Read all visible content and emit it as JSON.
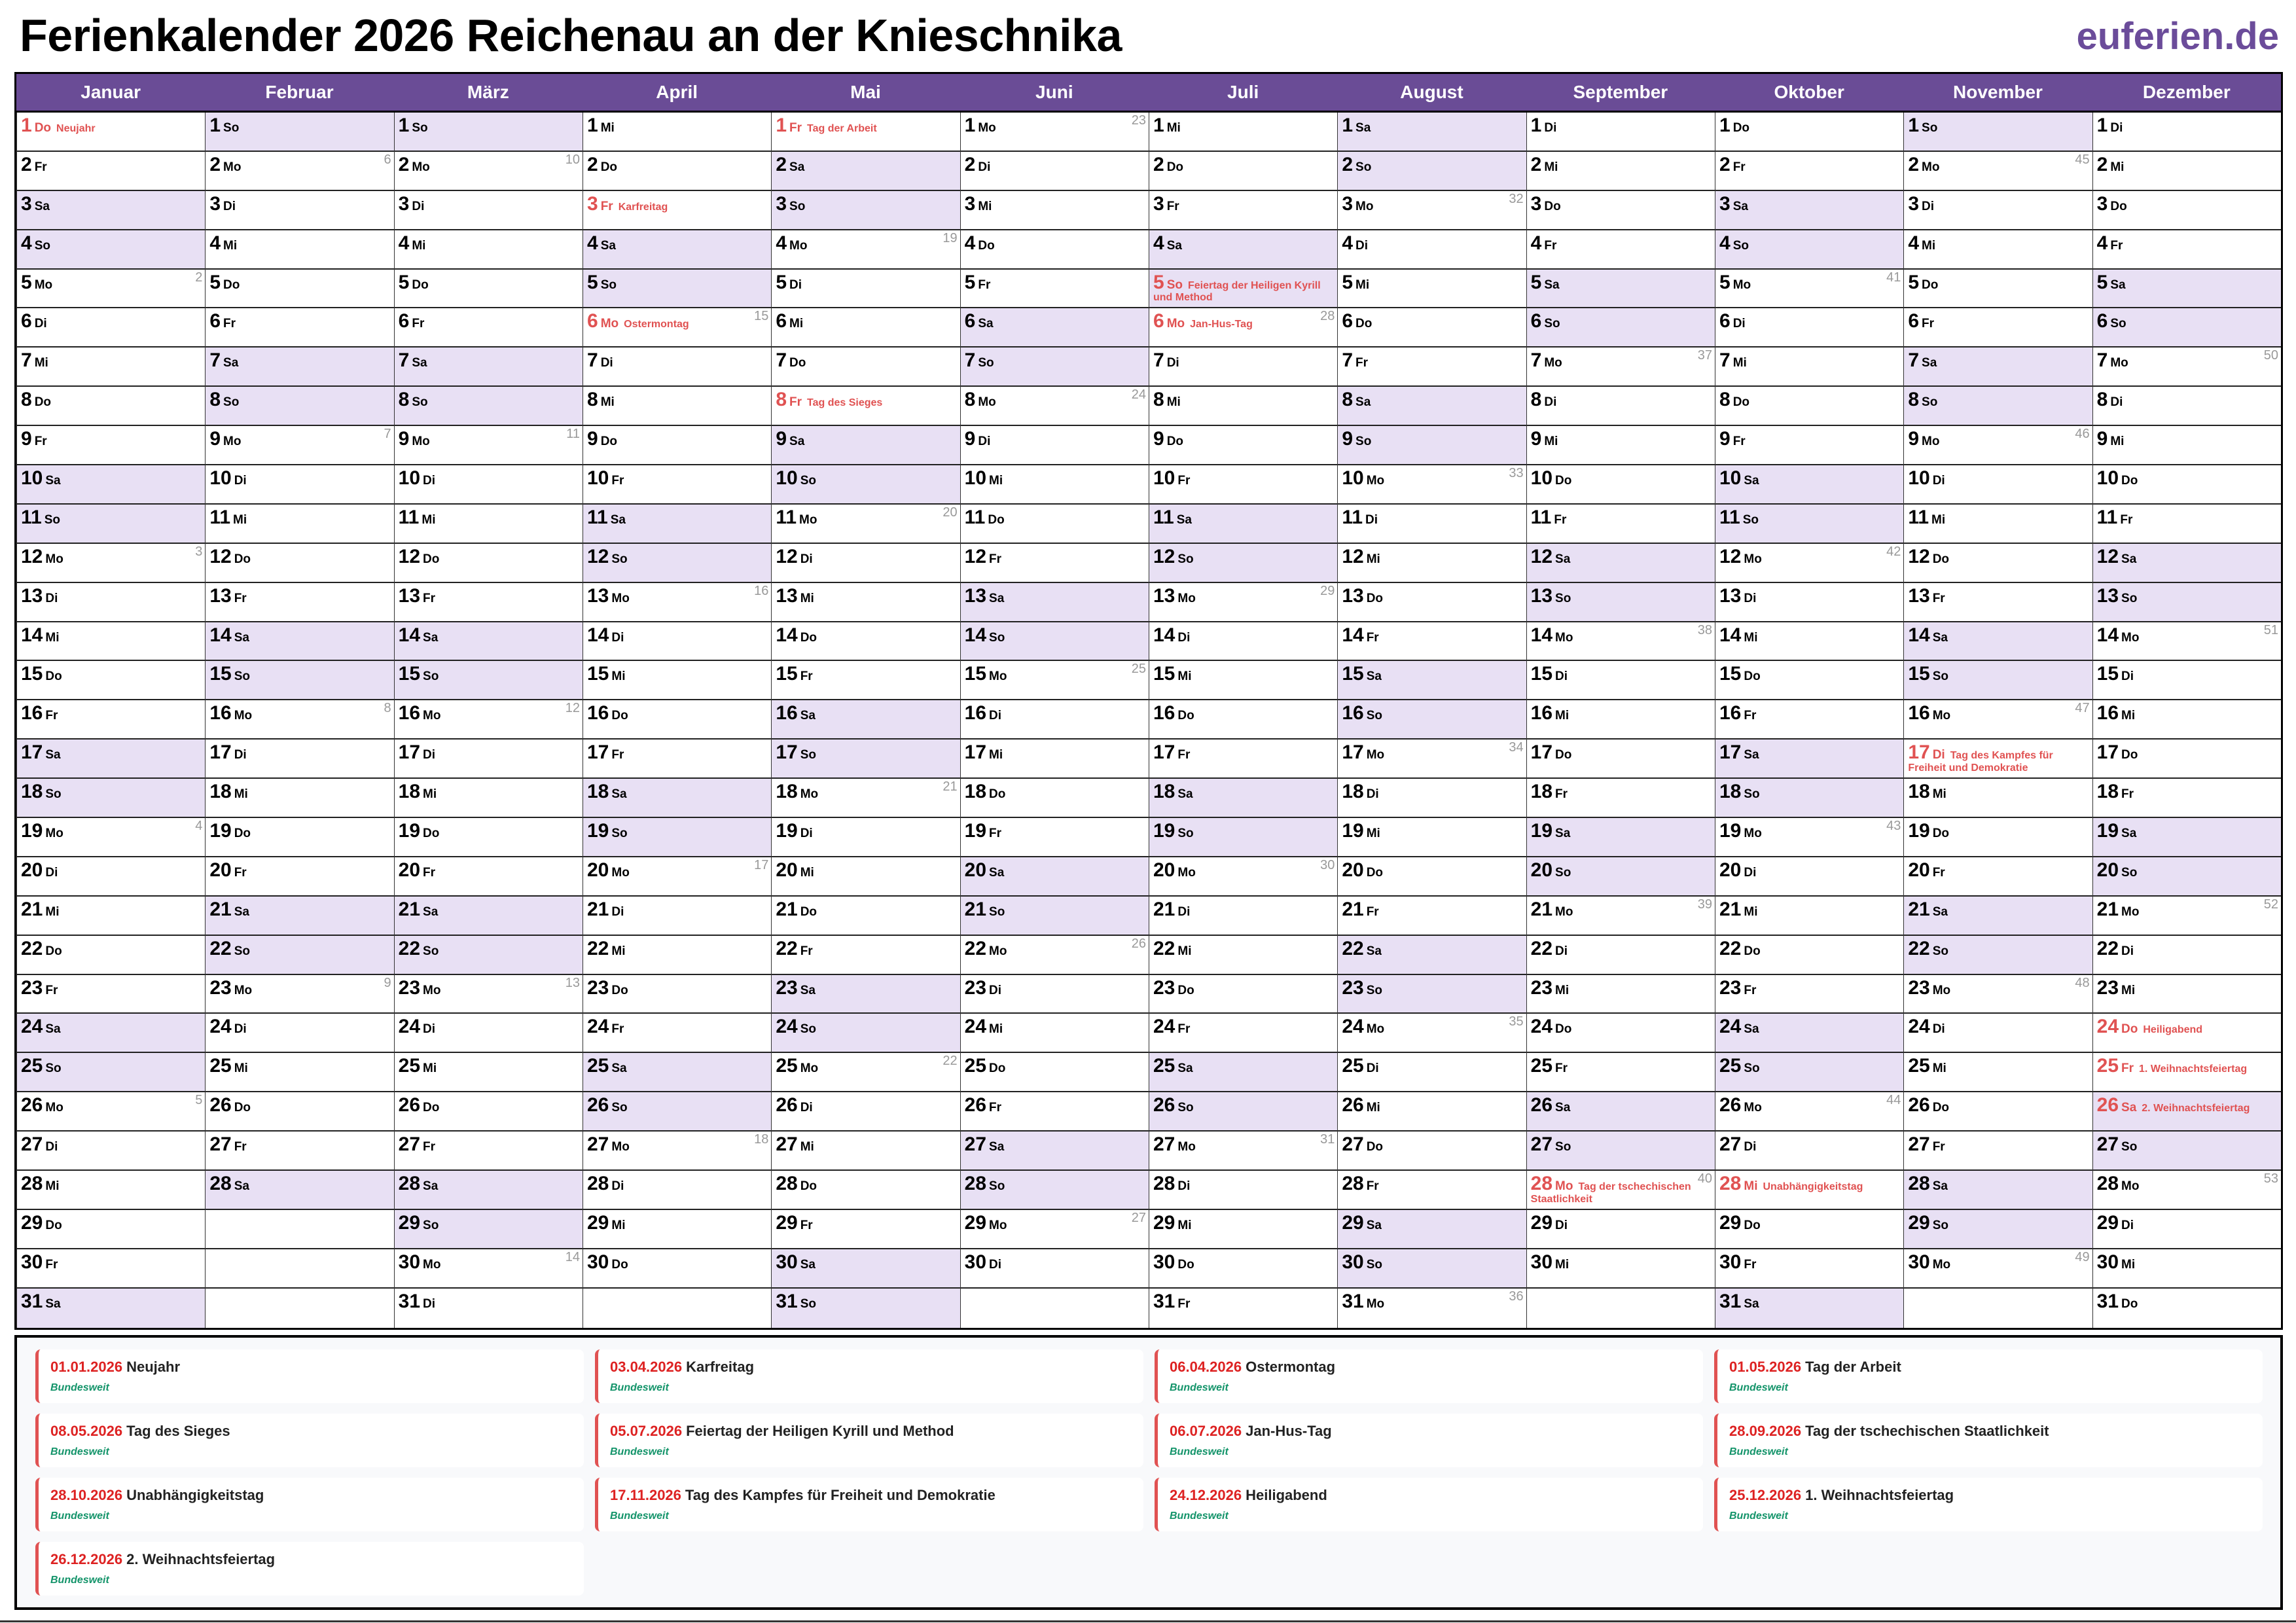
{
  "title": "Ferienkalender 2026 Reichenau an der Knieschnika",
  "logo": "euferien.de",
  "colors": {
    "header": "#6a4c96",
    "weekend": "#e8e0f4",
    "holiday": "#e05252",
    "logo": "#6b4c9a"
  },
  "weekdays": [
    "Mo",
    "Di",
    "Mi",
    "Do",
    "Fr",
    "Sa",
    "So"
  ],
  "months": [
    {
      "name": "Januar",
      "first_weekday": 3,
      "days": 31,
      "kw": {
        "5": "2",
        "12": "3",
        "19": "4",
        "26": "5"
      }
    },
    {
      "name": "Februar",
      "first_weekday": 6,
      "days": 28,
      "kw": {
        "2": "6",
        "9": "7",
        "16": "8",
        "23": "9"
      }
    },
    {
      "name": "März",
      "first_weekday": 6,
      "days": 31,
      "kw": {
        "2": "10",
        "9": "11",
        "16": "12",
        "23": "13",
        "30": "14"
      }
    },
    {
      "name": "April",
      "first_weekday": 2,
      "days": 30,
      "kw": {
        "6": "15",
        "13": "16",
        "20": "17",
        "27": "18"
      }
    },
    {
      "name": "Mai",
      "first_weekday": 4,
      "days": 31,
      "kw": {
        "4": "19",
        "11": "20",
        "18": "21",
        "25": "22"
      }
    },
    {
      "name": "Juni",
      "first_weekday": 0,
      "days": 30,
      "kw": {
        "1": "23",
        "8": "24",
        "15": "25",
        "22": "26",
        "29": "27"
      }
    },
    {
      "name": "Juli",
      "first_weekday": 2,
      "days": 31,
      "kw": {
        "6": "28",
        "13": "29",
        "20": "30",
        "27": "31"
      }
    },
    {
      "name": "August",
      "first_weekday": 5,
      "days": 31,
      "kw": {
        "3": "32",
        "10": "33",
        "17": "34",
        "24": "35",
        "31": "36"
      }
    },
    {
      "name": "September",
      "first_weekday": 1,
      "days": 30,
      "kw": {
        "7": "37",
        "14": "38",
        "21": "39",
        "28": "40"
      }
    },
    {
      "name": "Oktober",
      "first_weekday": 3,
      "days": 31,
      "kw": {
        "5": "41",
        "12": "42",
        "19": "43",
        "26": "44"
      }
    },
    {
      "name": "November",
      "first_weekday": 6,
      "days": 30,
      "kw": {
        "2": "45",
        "9": "46",
        "16": "47",
        "23": "48",
        "30": "49"
      }
    },
    {
      "name": "Dezember",
      "first_weekday": 1,
      "days": 31,
      "kw": {
        "7": "50",
        "14": "51",
        "21": "52",
        "28": "53"
      }
    }
  ],
  "holidays": [
    {
      "month": 1,
      "day": 1,
      "date": "01.01.2026",
      "name": "Neujahr",
      "region": "Bundesweit"
    },
    {
      "month": 4,
      "day": 3,
      "date": "03.04.2026",
      "name": "Karfreitag",
      "region": "Bundesweit"
    },
    {
      "month": 4,
      "day": 6,
      "date": "06.04.2026",
      "name": "Ostermontag",
      "region": "Bundesweit"
    },
    {
      "month": 5,
      "day": 1,
      "date": "01.05.2026",
      "name": "Tag der Arbeit",
      "region": "Bundesweit"
    },
    {
      "month": 5,
      "day": 8,
      "date": "08.05.2026",
      "name": "Tag des Sieges",
      "region": "Bundesweit"
    },
    {
      "month": 7,
      "day": 5,
      "date": "05.07.2026",
      "name": "Feiertag der Heiligen Kyrill und Method",
      "region": "Bundesweit"
    },
    {
      "month": 7,
      "day": 6,
      "date": "06.07.2026",
      "name": "Jan-Hus-Tag",
      "region": "Bundesweit"
    },
    {
      "month": 9,
      "day": 28,
      "date": "28.09.2026",
      "name": "Tag der tschechischen Staatlichkeit",
      "region": "Bundesweit"
    },
    {
      "month": 10,
      "day": 28,
      "date": "28.10.2026",
      "name": "Unabhängigkeitstag",
      "region": "Bundesweit"
    },
    {
      "month": 11,
      "day": 17,
      "date": "17.11.2026",
      "name": "Tag des Kampfes für Freiheit und Demokratie",
      "region": "Bundesweit"
    },
    {
      "month": 12,
      "day": 24,
      "date": "24.12.2026",
      "name": "Heiligabend",
      "region": "Bundesweit"
    },
    {
      "month": 12,
      "day": 25,
      "date": "25.12.2026",
      "name": "1. Weihnachtsfeiertag",
      "region": "Bundesweit"
    },
    {
      "month": 12,
      "day": 26,
      "date": "26.12.2026",
      "name": "2. Weihnachtsfeiertag",
      "region": "Bundesweit"
    }
  ]
}
